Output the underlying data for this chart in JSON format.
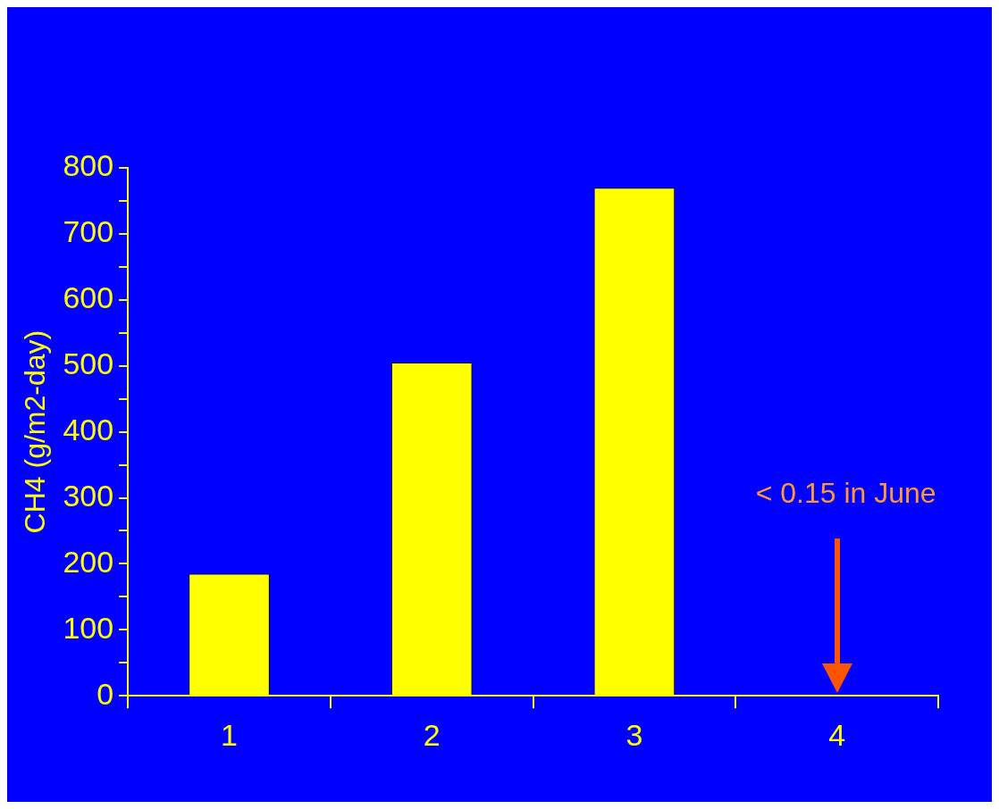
{
  "chart_data": {
    "type": "bar",
    "ylabel": "CH4 (g/m2-day)",
    "categories": [
      "1",
      "2",
      "3",
      "4"
    ],
    "values": [
      185,
      505,
      770,
      null
    ],
    "color": "#ffff00",
    "ylim": [
      0,
      800
    ],
    "yticks": [
      0,
      {
        "value": 50,
        "label": null
      },
      100,
      {
        "value": 150,
        "label": null
      },
      200,
      {
        "value": 250,
        "label": null
      },
      300,
      {
        "value": 350,
        "label": null
      },
      400,
      {
        "value": 450,
        "label": null
      },
      500,
      {
        "value": 550,
        "label": null
      },
      600,
      {
        "value": 650,
        "label": null
      },
      700,
      {
        "value": 750,
        "label": null
      },
      800
    ],
    "annotations": [
      "< 0.15 in June"
    ],
    "grid": false,
    "legend": false
  }
}
